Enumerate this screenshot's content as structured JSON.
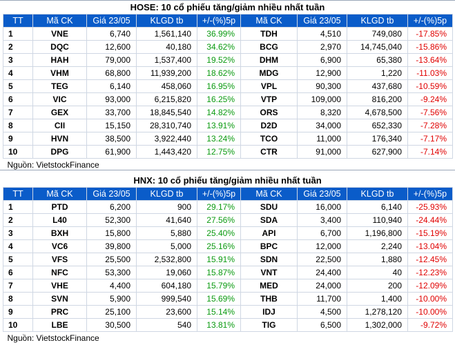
{
  "hose": {
    "title": "HOSE: 10 cổ phiếu tăng/giảm nhiều nhất tuần",
    "headers": [
      "TT",
      "Mã CK",
      "Giá 23/05",
      "KLGD tb",
      "+/-(%)5p",
      "Mã CK",
      "Giá 23/05",
      "KLGD tb",
      "+/-(%)5p"
    ],
    "rows": [
      [
        "1",
        "VNE",
        "6,740",
        "1,561,140",
        "36.99%",
        "TDH",
        "4,510",
        "749,080",
        "-17.85%"
      ],
      [
        "2",
        "DQC",
        "12,600",
        "40,180",
        "34.62%",
        "BCG",
        "2,970",
        "14,745,040",
        "-15.86%"
      ],
      [
        "3",
        "HAH",
        "79,000",
        "1,537,400",
        "19.52%",
        "DHM",
        "6,900",
        "65,380",
        "-13.64%"
      ],
      [
        "4",
        "VHM",
        "68,800",
        "11,939,200",
        "18.62%",
        "MDG",
        "12,900",
        "1,220",
        "-11.03%"
      ],
      [
        "5",
        "TEG",
        "6,140",
        "458,060",
        "16.95%",
        "VPL",
        "90,300",
        "437,680",
        "-10.59%"
      ],
      [
        "6",
        "VIC",
        "93,000",
        "6,215,820",
        "16.25%",
        "VTP",
        "109,000",
        "816,200",
        "-9.24%"
      ],
      [
        "7",
        "GEX",
        "33,700",
        "18,845,540",
        "14.82%",
        "ORS",
        "8,320",
        "4,678,500",
        "-7.56%"
      ],
      [
        "8",
        "CII",
        "15,150",
        "28,310,740",
        "13.91%",
        "D2D",
        "34,000",
        "652,330",
        "-7.28%"
      ],
      [
        "9",
        "HVN",
        "38,500",
        "3,922,440",
        "13.24%",
        "TCO",
        "11,000",
        "176,340",
        "-7.17%"
      ],
      [
        "10",
        "DPG",
        "61,900",
        "1,443,420",
        "12.75%",
        "CTR",
        "91,000",
        "627,900",
        "-7.14%"
      ]
    ],
    "source": "Nguồn: VietstockFinance"
  },
  "hnx": {
    "title": "HNX: 10 cổ phiếu tăng/giảm nhiều nhất tuần",
    "headers": [
      "TT",
      "Mã CK",
      "Giá 23/05",
      "KLGD tb",
      "+/-(%)5p",
      "Mã CK",
      "Giá 23/05",
      "KLGD tb",
      "+/-(%)5p"
    ],
    "rows": [
      [
        "1",
        "PTD",
        "6,200",
        "900",
        "29.17%",
        "SDU",
        "16,000",
        "6,140",
        "-25.93%"
      ],
      [
        "2",
        "L40",
        "52,300",
        "41,640",
        "27.56%",
        "SDA",
        "3,400",
        "110,940",
        "-24.44%"
      ],
      [
        "3",
        "BXH",
        "15,800",
        "5,880",
        "25.40%",
        "API",
        "6,700",
        "1,196,800",
        "-15.19%"
      ],
      [
        "4",
        "VC6",
        "39,800",
        "5,000",
        "25.16%",
        "BPC",
        "12,000",
        "2,240",
        "-13.04%"
      ],
      [
        "5",
        "VFS",
        "25,500",
        "2,532,800",
        "15.91%",
        "SDN",
        "22,500",
        "1,880",
        "-12.45%"
      ],
      [
        "6",
        "NFC",
        "53,300",
        "19,060",
        "15.87%",
        "VNT",
        "24,400",
        "40",
        "-12.23%"
      ],
      [
        "7",
        "VHE",
        "4,400",
        "604,180",
        "15.79%",
        "MED",
        "24,000",
        "200",
        "-12.09%"
      ],
      [
        "8",
        "SVN",
        "5,900",
        "999,540",
        "15.69%",
        "THB",
        "11,700",
        "1,400",
        "-10.00%"
      ],
      [
        "9",
        "PRC",
        "25,100",
        "23,600",
        "15.14%",
        "IDJ",
        "4,500",
        "1,278,120",
        "-10.00%"
      ],
      [
        "10",
        "LBE",
        "30,500",
        "540",
        "13.81%",
        "TIG",
        "6,500",
        "1,302,000",
        "-9.72%"
      ]
    ],
    "source": "Nguồn: VietstockFinance"
  },
  "colors": {
    "header_bg": "#0a5cc9",
    "up": "#0a9a10",
    "down": "#e00000"
  }
}
